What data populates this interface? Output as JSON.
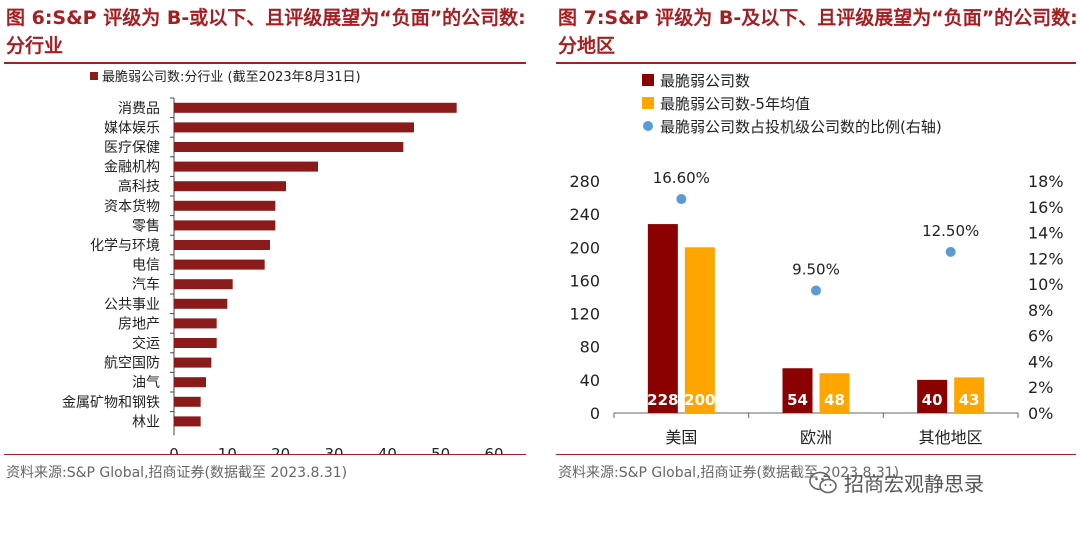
{
  "left": {
    "title": "图 6:S&P 评级为 B-或以下、且评级展望为“负面”的公司数:分行业",
    "source": "资料来源:S&P Global,招商证券(数据截至 2023.8.31)",
    "colors": {
      "title": "#a41e22",
      "bar": "#8b1a1a"
    }
  },
  "right": {
    "title": "图 7:S&P 评级为 B-及以下、且评级展望为“负面”的公司数:分地区",
    "source": "资料来源:S&P Global,招商证券(数据截至 2023.8.31)",
    "colors": {
      "title": "#a41e22",
      "bar1": "#8b0000",
      "bar2": "#ffa500",
      "dot": "#5b9bd5"
    }
  },
  "watermark": {
    "text": "招商宏观静思录",
    "icon": "wechat-icon"
  },
  "chart_data": [
    {
      "type": "bar",
      "orientation": "horizontal",
      "categories": [
        "消费品",
        "媒体娱乐",
        "医疗保健",
        "金融机构",
        "高科技",
        "资本货物",
        "零售",
        "化学与环境",
        "电信",
        "汽车",
        "公共事业",
        "房地产",
        "交运",
        "航空国防",
        "油气",
        "金属矿物和钢铁",
        "林业"
      ],
      "series": [
        {
          "name": "最脆弱公司数:分行业 (截至2023年8月31日)",
          "values": [
            53,
            45,
            43,
            27,
            21,
            19,
            19,
            18,
            17,
            11,
            10,
            8,
            8,
            7,
            6,
            5,
            5
          ]
        }
      ],
      "xlim": [
        0,
        60
      ],
      "xticks": [
        "0",
        "10",
        "20",
        "30",
        "40",
        "50",
        "60"
      ],
      "legend": "top",
      "grid": false
    },
    {
      "type": "bar",
      "categories": [
        "美国",
        "欧洲",
        "其他地区"
      ],
      "series": [
        {
          "name": "最脆弱公司数",
          "type": "bar",
          "axis": "left",
          "values": [
            228,
            54,
            40
          ]
        },
        {
          "name": "最脆弱公司数-5年均值",
          "type": "bar",
          "axis": "left",
          "values": [
            200,
            48,
            43
          ]
        },
        {
          "name": "最脆弱公司数占投机级公司数的比例(右轴)",
          "type": "scatter",
          "axis": "right",
          "values": [
            16.6,
            9.5,
            12.5
          ],
          "labels": [
            "16.60%",
            "9.50%",
            "12.50%"
          ]
        }
      ],
      "ylim": [
        0,
        280
      ],
      "yticks": [
        "0",
        "40",
        "80",
        "120",
        "160",
        "200",
        "240",
        "280"
      ],
      "y2lim": [
        0,
        18
      ],
      "y2ticks": [
        "0%",
        "2%",
        "4%",
        "6%",
        "8%",
        "10%",
        "12%",
        "14%",
        "16%",
        "18%"
      ],
      "legend": "top-left",
      "grid": false
    }
  ]
}
